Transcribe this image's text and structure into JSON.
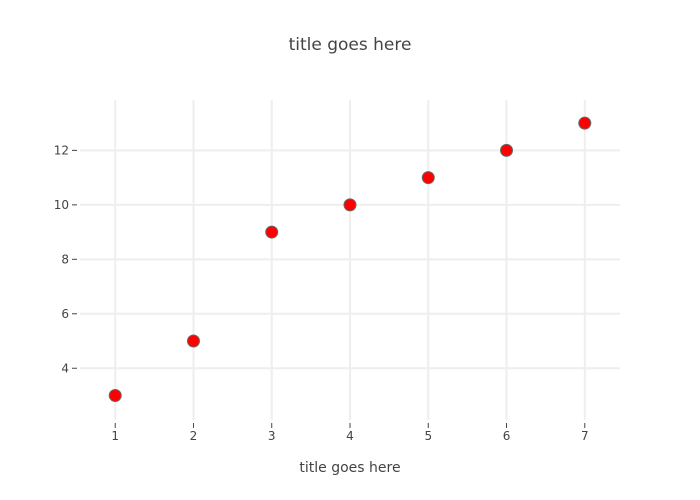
{
  "chart_data": {
    "type": "scatter",
    "title": "title goes here",
    "xlabel": "title goes here",
    "ylabel": "",
    "xlim": [
      0.55,
      7.45
    ],
    "ylim": [
      2.1,
      13.85
    ],
    "x_ticks": [
      1,
      2,
      3,
      4,
      5,
      6,
      7
    ],
    "y_ticks": [
      4,
      6,
      8,
      10,
      12
    ],
    "grid": true,
    "legend": false,
    "series": [
      {
        "x": [
          1,
          2,
          3,
          4,
          5,
          6,
          7
        ],
        "y": [
          3,
          5,
          9,
          10,
          11,
          12,
          13
        ],
        "color": "#ff0000",
        "outline_color": "#696969"
      }
    ]
  }
}
